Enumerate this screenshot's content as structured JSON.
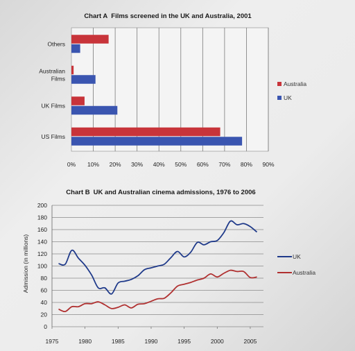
{
  "chart_data": [
    {
      "type": "bar",
      "orientation": "horizontal",
      "title_prefix": "Chart A",
      "title": "Films screened in the UK and Australia, 2001",
      "categories": [
        "Others",
        "Australian Films",
        "UK Films",
        "US Films"
      ],
      "category_lines": [
        [
          "Others"
        ],
        [
          "Australian",
          "Films"
        ],
        [
          "UK Films"
        ],
        [
          "US Films"
        ]
      ],
      "series": [
        {
          "name": "Australia",
          "color": "#c8343a",
          "values": [
            17,
            1,
            6,
            68
          ]
        },
        {
          "name": "UK",
          "color": "#3a55b0",
          "values": [
            4,
            11,
            21,
            78
          ]
        }
      ],
      "xlim": [
        0,
        90
      ],
      "ticks": [
        0,
        10,
        20,
        30,
        40,
        50,
        60,
        70,
        80,
        90
      ],
      "tick_labels": [
        "0%",
        "10%",
        "20%",
        "30%",
        "40%",
        "50%",
        "60%",
        "70%",
        "80%",
        "90%"
      ],
      "grid": "vertical",
      "legend": "right"
    },
    {
      "type": "line",
      "title_prefix": "Chart B",
      "title": "UK and Australian cinema admissions, 1976 to 2006",
      "ylabel": "Admission (in millions)",
      "xlim": [
        1975,
        2007
      ],
      "ylim": [
        0,
        200
      ],
      "xticks": [
        1975,
        1980,
        1985,
        1990,
        1995,
        2000,
        2005
      ],
      "yticks": [
        0,
        20,
        40,
        60,
        80,
        100,
        120,
        140,
        160,
        180,
        200
      ],
      "grid": "horizontal",
      "legend": "right",
      "series": [
        {
          "name": "UK",
          "color": "#1f3a8a",
          "x": [
            1976,
            1977,
            1978,
            1979,
            1980,
            1981,
            1982,
            1983,
            1984,
            1985,
            1986,
            1987,
            1988,
            1989,
            1990,
            1991,
            1992,
            1993,
            1994,
            1995,
            1996,
            1997,
            1998,
            1999,
            2000,
            2001,
            2002,
            2003,
            2004,
            2005,
            2006
          ],
          "y": [
            104,
            103,
            126,
            113,
            101,
            85,
            64,
            64,
            54,
            72,
            75,
            78,
            84,
            94,
            97,
            100,
            103,
            114,
            124,
            115,
            123,
            139,
            135,
            140,
            142,
            155,
            174,
            168,
            170,
            165,
            156
          ]
        },
        {
          "name": "Australia",
          "color": "#b03030",
          "x": [
            1976,
            1977,
            1978,
            1979,
            1980,
            1981,
            1982,
            1983,
            1984,
            1985,
            1986,
            1987,
            1988,
            1989,
            1990,
            1991,
            1992,
            1993,
            1994,
            1995,
            1996,
            1997,
            1998,
            1999,
            2000,
            2001,
            2002,
            2003,
            2004,
            2005,
            2006
          ],
          "y": [
            29,
            25,
            33,
            33,
            38,
            38,
            41,
            36,
            30,
            32,
            36,
            31,
            37,
            38,
            42,
            46,
            47,
            56,
            67,
            70,
            73,
            77,
            80,
            87,
            82,
            88,
            93,
            91,
            91,
            81,
            82
          ]
        }
      ]
    }
  ]
}
